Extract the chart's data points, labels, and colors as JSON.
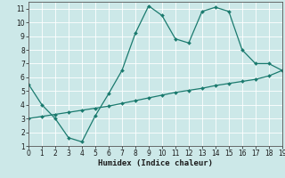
{
  "xlabel": "Humidex (Indice chaleur)",
  "bg_color": "#cce8e8",
  "line_color": "#1a7a6e",
  "grid_color": "#ffffff",
  "x_upper": [
    0,
    1,
    2,
    3,
    4,
    5,
    6,
    7,
    8,
    9,
    10,
    11,
    12,
    13,
    14,
    15,
    16,
    17,
    18,
    19
  ],
  "y_upper": [
    5.5,
    4.0,
    3.0,
    1.6,
    1.3,
    3.2,
    4.8,
    6.5,
    9.2,
    11.2,
    10.5,
    8.8,
    8.5,
    10.8,
    11.1,
    10.8,
    8.0,
    7.0,
    7.0,
    6.5
  ],
  "x_lower": [
    0,
    1,
    2,
    3,
    4,
    5,
    6,
    7,
    8,
    9,
    10,
    11,
    12,
    13,
    14,
    15,
    16,
    17,
    18,
    19
  ],
  "y_lower": [
    3.0,
    3.15,
    3.3,
    3.45,
    3.6,
    3.75,
    3.9,
    4.1,
    4.3,
    4.5,
    4.7,
    4.9,
    5.05,
    5.2,
    5.4,
    5.55,
    5.7,
    5.85,
    6.1,
    6.5
  ],
  "xlim": [
    0,
    19
  ],
  "ylim": [
    1,
    11.5
  ],
  "yticks": [
    1,
    2,
    3,
    4,
    5,
    6,
    7,
    8,
    9,
    10,
    11
  ],
  "xticks": [
    0,
    1,
    2,
    3,
    4,
    5,
    6,
    7,
    8,
    9,
    10,
    11,
    12,
    13,
    14,
    15,
    16,
    17,
    18,
    19
  ],
  "marker_size": 2.0,
  "line_width": 0.9,
  "font_size_label": 6.5,
  "font_size_tick": 5.5
}
